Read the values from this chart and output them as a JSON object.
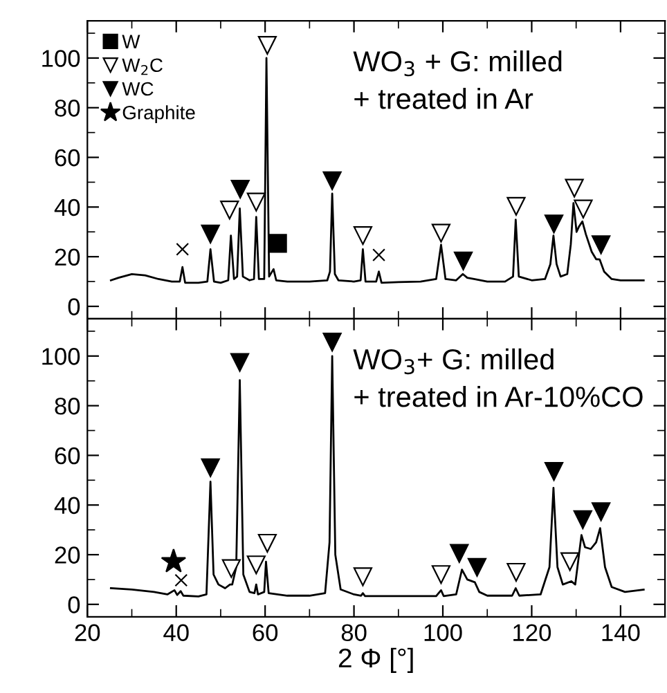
{
  "chart_data": [
    {
      "type": "line",
      "annotations": [
        "WO$_{3}$ + G: milled\n+ treated in Ar"
      ],
      "xlim": [
        20,
        150
      ],
      "xticks": [
        20,
        40,
        60,
        80,
        100,
        120,
        140
      ],
      "ylim": [
        -5,
        115
      ],
      "yticks": [
        0,
        20,
        40,
        60,
        80,
        100
      ],
      "tick_labels": "y",
      "legend": "top left",
      "grid": false,
      "series": [
        {
          "color": "#000000",
          "x": [
            25.3,
            27,
            30,
            33,
            36,
            39,
            40.8,
            41.4,
            42,
            45,
            47,
            47.7,
            48.5,
            50,
            51.7,
            52.3,
            53,
            53.7,
            54.3,
            55,
            56.5,
            57.5,
            58.0,
            58.6,
            59.8,
            60.3,
            60.9,
            61.9,
            62.5,
            65,
            70,
            74,
            74.6,
            75.1,
            75.7,
            76.5,
            80,
            81.5,
            82.0,
            82.6,
            85,
            85.6,
            86.2,
            90,
            95,
            98.5,
            99.6,
            100.6,
            103,
            104.5,
            105.5,
            107,
            110,
            114,
            115.8,
            116.4,
            117.1,
            120,
            123,
            124.2,
            124.9,
            125.6,
            126.5,
            128,
            128.8,
            129.4,
            130.1,
            130.6,
            131.4,
            132.2,
            133.5,
            134.5,
            135.3,
            136.3,
            138,
            140,
            145.2
          ],
          "values": [
            10.5,
            11.5,
            13,
            12.5,
            11,
            10,
            10,
            15.8,
            9.5,
            9.5,
            10,
            23,
            10,
            9.5,
            10.5,
            28.5,
            11,
            12,
            39.4,
            12,
            10.5,
            11,
            36,
            11,
            11,
            100,
            12,
            15,
            10.5,
            10,
            10,
            10.5,
            14,
            45.4,
            13,
            10.5,
            10,
            10.5,
            23,
            10,
            10,
            14,
            9.5,
            9.8,
            10,
            11,
            24.8,
            11,
            10.5,
            13,
            11.5,
            11,
            10,
            10,
            12,
            34.9,
            12,
            10.5,
            11,
            17,
            28.5,
            17,
            12,
            13,
            25,
            41.6,
            30,
            32,
            34.2,
            29,
            22,
            19,
            18.9,
            14,
            11,
            10.5,
            10.5
          ]
        },
        {
          "type": "scatter",
          "name": "W",
          "marker": "square",
          "color": "#000000",
          "x": [
            62.8
          ],
          "values": [
            25.4
          ]
        },
        {
          "type": "scatter",
          "name": "W$_{2}$C",
          "marker": "triangle",
          "color": "#ffffff",
          "x": [
            60.5,
            52.0,
            58.0,
            82.0,
            99.6,
            116.5,
            129.6,
            131.6
          ],
          "values": [
            105.1,
            38.8,
            42,
            28.5,
            29.5,
            40.3,
            47.6,
            39.2
          ]
        },
        {
          "type": "scatter",
          "name": "WC",
          "marker": "triangle",
          "color": "#000000",
          "x": [
            47.7,
            54.4,
            75.1,
            104.6,
            125.0,
            135.6
          ],
          "values": [
            29.1,
            47.2,
            50.6,
            18.3,
            33.2,
            24.8
          ]
        },
        {
          "type": "scatter",
          "name": "Graphite",
          "marker": "star",
          "color": "#000000"
        },
        {
          "type": "scatter",
          "marker": "cross",
          "color": "#000000",
          "x": [
            41.4,
            85.6
          ],
          "values": [
            23,
            20.7
          ]
        }
      ]
    },
    {
      "type": "line",
      "annotations": [
        "WO$_{3}$+ G: milled\n+ treated in Ar-10%CO"
      ],
      "xlabel": "2 Φ [°]",
      "xlim": [
        20,
        150
      ],
      "xticks": [
        20,
        40,
        60,
        80,
        100,
        120,
        140
      ],
      "ylim": [
        -5,
        115
      ],
      "yticks": [
        0,
        20,
        40,
        60,
        80,
        100
      ],
      "grid": false,
      "series": [
        {
          "color": "#000000",
          "x": [
            25.3,
            30,
            35,
            38,
            39.6,
            40.2,
            41,
            41.6,
            45,
            46.8,
            47.7,
            48.4,
            49.5,
            51,
            52.1,
            52.6,
            53.5,
            54.3,
            55.1,
            56.5,
            57.6,
            58.0,
            58.4,
            59.8,
            60.2,
            60.8,
            65,
            70,
            73.5,
            74.5,
            75.1,
            75.8,
            77,
            80,
            81.6,
            82,
            82.5,
            90,
            98.5,
            99.6,
            100.2,
            103,
            104.3,
            105.5,
            107.2,
            108.2,
            110,
            115.6,
            116.4,
            117.2,
            122,
            124,
            124.9,
            125.8,
            127,
            128.9,
            129.8,
            131.2,
            132,
            133.3,
            134.5,
            135.4,
            136.5,
            138,
            141,
            145.2
          ],
          "values": [
            6.5,
            6,
            5,
            4,
            5.7,
            3.8,
            5.3,
            3.5,
            3.2,
            4,
            49.4,
            12,
            8,
            6.5,
            8,
            8,
            15,
            90.3,
            12,
            5,
            4.5,
            8,
            4,
            5,
            17.2,
            4.5,
            3.5,
            3.5,
            4.5,
            25,
            100,
            20,
            6,
            4,
            3.5,
            4.5,
            3.3,
            3.3,
            3.3,
            5.7,
            3.3,
            4,
            14,
            10,
            8.9,
            5,
            3.5,
            3.5,
            6.5,
            3.5,
            4,
            15,
            46.9,
            15,
            8,
            9.3,
            8,
            27.9,
            23,
            22.3,
            25,
            30.7,
            15,
            7,
            5,
            5.9
          ]
        },
        {
          "type": "scatter",
          "marker": "star",
          "color": "#000000",
          "x": [
            39.4
          ],
          "values": [
            17.2
          ]
        },
        {
          "type": "scatter",
          "marker": "cross",
          "color": "#000000",
          "x": [
            41.1
          ],
          "values": [
            9.7
          ]
        },
        {
          "type": "scatter",
          "name": "WC",
          "marker": "triangle",
          "color": "#000000",
          "x": [
            47.7,
            54.3,
            75.1,
            103.7,
            107.7,
            125.0,
            131.5,
            135.6
          ],
          "values": [
            55,
            97.4,
            105.6,
            20.5,
            14.9,
            53.5,
            34.1,
            37.3
          ]
        },
        {
          "type": "scatter",
          "name": "W$_{2}$C",
          "marker": "triangle",
          "color": "#ffffff",
          "x": [
            52.4,
            58.0,
            60.5,
            82.0,
            99.6,
            116.5,
            128.6
          ],
          "values": [
            14.4,
            15.9,
            24.6,
            11.1,
            12,
            12.9,
            17.2
          ]
        }
      ]
    }
  ]
}
